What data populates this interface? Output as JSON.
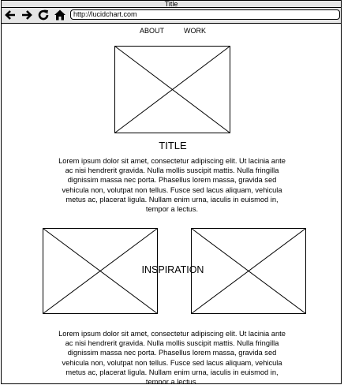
{
  "window": {
    "title": "Title"
  },
  "browser": {
    "url": "http://lucidchart.com",
    "icons": [
      "back-arrow-icon",
      "forward-arrow-icon",
      "reload-icon",
      "home-icon"
    ]
  },
  "nav": {
    "items": [
      {
        "label": "ABOUT"
      },
      {
        "label": "WORK"
      }
    ]
  },
  "hero": {
    "title": "TITLE"
  },
  "sections": [
    {
      "text": "Lorem ipsum dolor sit amet, consectetur adipiscing elit. Ut lacinia ante ac nisi hendrerit gravida. Nulla mollis suscipit mattis. Nulla fringilla dignissim massa nec porta. Phasellus lorem massa, gravida sed vehicula non, volutpat non tellus. Fusce sed lacus aliquam, vehicula metus ac, placerat ligula. Nullam enim urna, iaculis in euismod in, tempor a lectus."
    },
    {
      "text": "Lorem ipsum dolor sit amet, consectetur adipiscing elit. Ut lacinia ante ac nisi hendrerit gravida. Nulla mollis suscipit mattis. Nulla fringilla dignissim massa nec porta. Phasellus lorem massa, gravida sed vehicula non, volutpat non tellus. Fusce sed lacus aliquam, vehicula metus ac, placerat ligula. Nullam enim urna, iaculis in euismod in, tempor a lectus."
    }
  ],
  "gallery": {
    "label": "INSPIRATION"
  }
}
